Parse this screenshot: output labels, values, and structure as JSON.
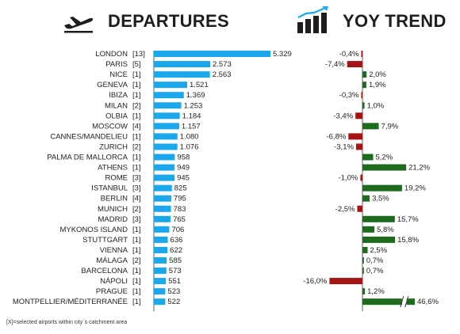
{
  "headers": {
    "departures": "DEPARTURES",
    "yoy": "YOY TREND",
    "departures_icon": "plane-takeoff-icon",
    "yoy_icon": "bar-chart-trend-icon"
  },
  "footnote": "[X]=selected airports within city´s catchment area",
  "colors": {
    "departures_bar": "#1aa7ec",
    "yoy_positive": "#1e6b1e",
    "yoy_negative": "#a31515",
    "axis": "#333333",
    "text": "#222222"
  },
  "chart_data": [
    {
      "type": "bar",
      "orientation": "horizontal",
      "title": "DEPARTURES",
      "categories": [
        "LONDON",
        "PARIS",
        "NICE",
        "GENEVA",
        "IBIZA",
        "MILAN",
        "OLBIA",
        "MOSCOW",
        "CANNES/MANDELIEU",
        "ZURICH",
        "PALMA DE MALLORCA",
        "ATHENS",
        "ROME",
        "ISTANBUL",
        "BERLIN",
        "MUNICH",
        "MADRID",
        "MYKONOS ISLAND",
        "STUTTGART",
        "VIENNA",
        "MÁLAGA",
        "BARCELONA",
        "NÁPOLI",
        "PRAGUE",
        "MONTPELLIER/MÉDITERRANÉE"
      ],
      "airport_counts": [
        "[13]",
        "[5]",
        "[1]",
        "[1]",
        "[1]",
        "[2]",
        "[1]",
        "[4]",
        "[1]",
        "[2]",
        "[1]",
        "[1]",
        "[3]",
        "[3]",
        "[4]",
        "[2]",
        "[3]",
        "[1]",
        "[1]",
        "[1]",
        "[2]",
        "[1]",
        "[1]",
        "[1]",
        "[1]"
      ],
      "values": [
        5329,
        2573,
        2563,
        1521,
        1369,
        1253,
        1184,
        1157,
        1080,
        1076,
        958,
        949,
        945,
        825,
        795,
        783,
        765,
        706,
        636,
        622,
        585,
        573,
        551,
        523,
        522
      ],
      "value_labels": [
        "5.329",
        "2.573",
        "2.563",
        "1.521",
        "1.369",
        "1.253",
        "1.184",
        "1.157",
        "1.080",
        "1.076",
        "958",
        "949",
        "945",
        "825",
        "795",
        "783",
        "765",
        "706",
        "636",
        "622",
        "585",
        "573",
        "551",
        "523",
        "522"
      ],
      "xlim": [
        0,
        5329
      ]
    },
    {
      "type": "bar",
      "orientation": "horizontal",
      "title": "YOY TREND",
      "categories": [
        "LONDON",
        "PARIS",
        "NICE",
        "GENEVA",
        "IBIZA",
        "MILAN",
        "OLBIA",
        "MOSCOW",
        "CANNES/MANDELIEU",
        "ZURICH",
        "PALMA DE MALLORCA",
        "ATHENS",
        "ROME",
        "ISTANBUL",
        "BERLIN",
        "MUNICH",
        "MADRID",
        "MYKONOS ISLAND",
        "STUTTGART",
        "VIENNA",
        "MÁLAGA",
        "BARCELONA",
        "NÁPOLI",
        "PRAGUE",
        "MONTPELLIER/MÉDITERRANÉE"
      ],
      "values": [
        -0.4,
        -7.4,
        2.0,
        1.9,
        -0.3,
        1.0,
        -3.4,
        7.9,
        -6.8,
        -3.1,
        5.2,
        21.2,
        -1.0,
        19.2,
        3.5,
        -2.5,
        15.7,
        5.8,
        15.8,
        2.5,
        0.7,
        0.7,
        -16.0,
        1.2,
        46.6
      ],
      "value_labels": [
        "-0,4%",
        "-7,4%",
        "2,0%",
        "1,9%",
        "-0,3%",
        "1,0%",
        "-3,4%",
        "7,9%",
        "-6,8%",
        "-3,1%",
        "5,2%",
        "21,2%",
        "-1,0%",
        "19,2%",
        "3,5%",
        "-2,5%",
        "15,7%",
        "5,8%",
        "15,8%",
        "2,5%",
        "0,7%",
        "0,7%",
        "-16,0%",
        "1,2%",
        "46,6%"
      ],
      "unit": "%",
      "axis_break": "MONTPELLIER/MÉDITERRANÉE"
    }
  ]
}
